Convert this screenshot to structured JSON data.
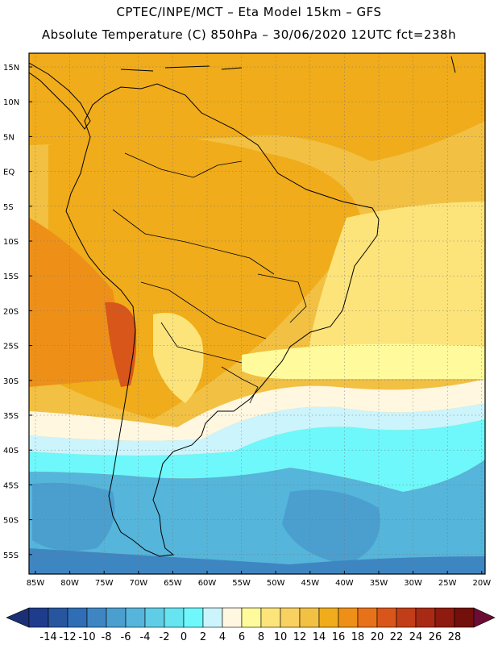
{
  "title_line1": "CPTEC/INPE/MCT –  Eta Model 15km – GFS",
  "title_line2": "Absolute Temperature (C) 850hPa – 30/06/2020 12UTC fct=238h",
  "lat_labels": [
    "15N",
    "10N",
    "5N",
    "EQ",
    "5S",
    "10S",
    "15S",
    "20S",
    "25S",
    "30S",
    "35S",
    "40S",
    "45S",
    "50S",
    "55S"
  ],
  "lon_labels": [
    "85W",
    "80W",
    "75W",
    "70W",
    "65W",
    "60W",
    "55W",
    "50W",
    "45W",
    "40W",
    "35W",
    "30W",
    "25W",
    "20W"
  ],
  "colorbar": {
    "ticks": [
      "-14",
      "-12",
      "-10",
      "-8",
      "-6",
      "-4",
      "-2",
      "0",
      "2",
      "4",
      "6",
      "8",
      "10",
      "12",
      "14",
      "16",
      "18",
      "20",
      "22",
      "24",
      "26",
      "28"
    ],
    "colors": [
      "#1f3c8c",
      "#27569f",
      "#2f6eb4",
      "#3e86c2",
      "#4b9fcf",
      "#55b5da",
      "#5fcde6",
      "#66e4f0",
      "#6ef8fb",
      "#ccf4fc",
      "#fff7e0",
      "#fffb9c",
      "#fde47a",
      "#f8d160",
      "#f2c042",
      "#f0ac1a",
      "#ee9018",
      "#e8721a",
      "#d8561a",
      "#c23e18",
      "#a82a14",
      "#8e1a10",
      "#73100c"
    ],
    "under_color": "#1a2f75",
    "over_color": "#6b0c34"
  },
  "colors": {
    "warm_north": "#f0ac1a",
    "warm_mid": "#f2c042",
    "hot_interior": "#ee9018",
    "andes_hot": "#d8561a",
    "yellow": "#fde47a",
    "pale_yellow": "#fffb9c",
    "cream": "#fff7e0",
    "pale_cyan": "#ccf4fc",
    "cyan": "#6ef8fb",
    "light_blue": "#55b5da",
    "mid_blue": "#4b9fcf",
    "deep_blue": "#3e86c2"
  }
}
